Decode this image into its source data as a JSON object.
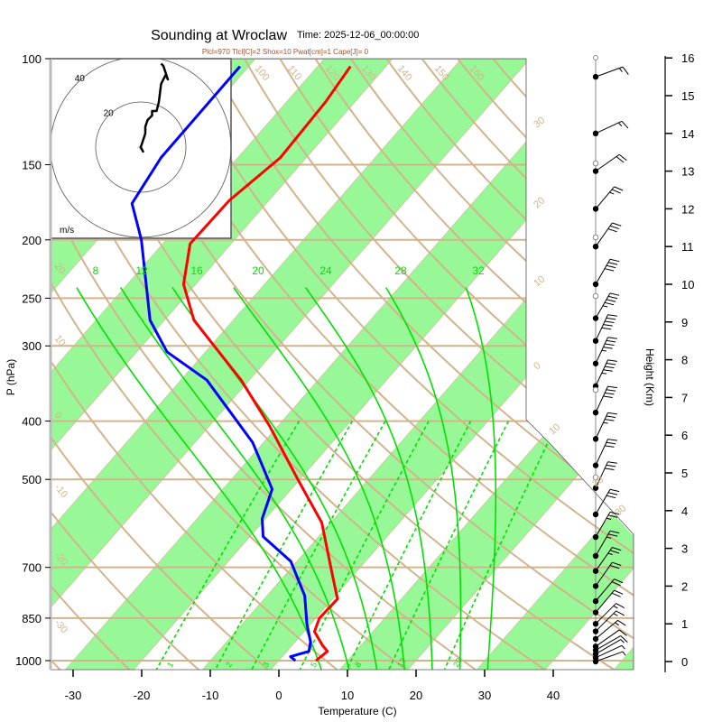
{
  "chart_data": {
    "type": "skew-t",
    "title": "Sounding at Wroclaw",
    "time_label": "Time: 2025-12-06_00:00:00",
    "indices_text": "Plcl=970 Tlcl[C]=2 Shox=10 Pwat[cm]=1 Cape[J]= 0",
    "xlabel": "Temperature (C)",
    "ylabel": "P (hPa)",
    "y2label": "Height (Km)",
    "xlim": [
      -34,
      51
    ],
    "ylim": [
      1050,
      100
    ],
    "x_ticks": [
      -30,
      -20,
      -10,
      0,
      10,
      20,
      30,
      40
    ],
    "p_ticks": [
      100,
      150,
      200,
      250,
      300,
      400,
      500,
      700,
      850,
      1000
    ],
    "height_ticks": [
      0,
      1,
      2,
      3,
      4,
      5,
      6,
      7,
      8,
      9,
      10,
      11,
      12,
      13,
      14,
      15,
      16
    ],
    "isotherm_labels": [
      -30,
      -20,
      -10,
      0,
      10,
      20,
      30
    ],
    "dry_adiabat_labels": [
      100,
      110,
      120,
      130,
      140,
      150,
      160
    ],
    "dry_adiabat_left_labels": [
      20,
      10,
      0,
      -10,
      -20,
      -30
    ],
    "mixing_ratio_top_labels": [
      8,
      12,
      16,
      20,
      24,
      28,
      32
    ],
    "mixing_ratio_bottom_labels": [
      1,
      2,
      3,
      5,
      8,
      12,
      20
    ],
    "temperature": {
      "name": "Temperature",
      "color": "#ff0000",
      "p": [
        1000,
        965,
        943,
        895,
        850,
        790,
        705,
        590,
        500,
        407,
        342,
        272,
        237,
        203,
        172,
        146,
        118,
        103
      ],
      "t": [
        5.4,
        5.9,
        4.4,
        1.5,
        0.5,
        0.7,
        -4.0,
        -11.3,
        -20.3,
        -31.3,
        -41.2,
        -55.7,
        -61.8,
        -66.0,
        -65.8,
        -63.8,
        -64.3,
        -65.2
      ]
    },
    "dewpoint": {
      "name": "Dewpoint",
      "color": "#0000ff",
      "p": [
        1000,
        985,
        965,
        930,
        871,
        780,
        684,
        622,
        581,
        519,
        434,
        342,
        307,
        272,
        200,
        174,
        146,
        103
      ],
      "t": [
        2.4,
        1.2,
        3.2,
        2.2,
        -0.5,
        -4.5,
        -10.9,
        -18.1,
        -20.5,
        -22.8,
        -31.6,
        -46.2,
        -55.6,
        -62.1,
        -73.6,
        -79.6,
        -81.2,
        -81.3
      ]
    },
    "hodograph": {
      "unit_label": "m/s",
      "rings": [
        20,
        40
      ],
      "u": [
        0,
        1,
        0,
        1,
        2,
        2,
        3,
        5,
        5,
        7,
        8,
        9,
        11,
        12,
        10,
        9
      ],
      "v": [
        0,
        -2,
        0,
        3,
        6,
        9,
        12,
        14,
        16,
        16,
        20,
        28,
        32,
        30,
        36,
        37
      ]
    },
    "wind_barbs": {
      "height_km": [
        0.0,
        0.1,
        0.2,
        0.3,
        0.4,
        0.6,
        0.8,
        1.0,
        1.3,
        1.6,
        2.0,
        2.4,
        2.8,
        3.3,
        3.9,
        4.6,
        5.2,
        5.9,
        6.6,
        7.3,
        7.9,
        8.5,
        9.1,
        10.0,
        11.0,
        12.0,
        13.0,
        14.0,
        15.5
      ],
      "speed_ms": [
        3,
        4,
        5,
        6,
        7,
        8,
        9,
        10,
        11,
        12,
        12,
        13,
        14,
        15,
        16,
        17,
        18,
        20,
        22,
        24,
        25,
        26,
        25,
        22,
        18,
        15,
        12,
        10,
        9
      ],
      "dir_deg": [
        250,
        245,
        240,
        240,
        235,
        230,
        225,
        225,
        220,
        220,
        215,
        215,
        210,
        210,
        210,
        205,
        205,
        205,
        205,
        205,
        205,
        205,
        210,
        210,
        215,
        220,
        235,
        245,
        250
      ]
    },
    "grid": true
  }
}
